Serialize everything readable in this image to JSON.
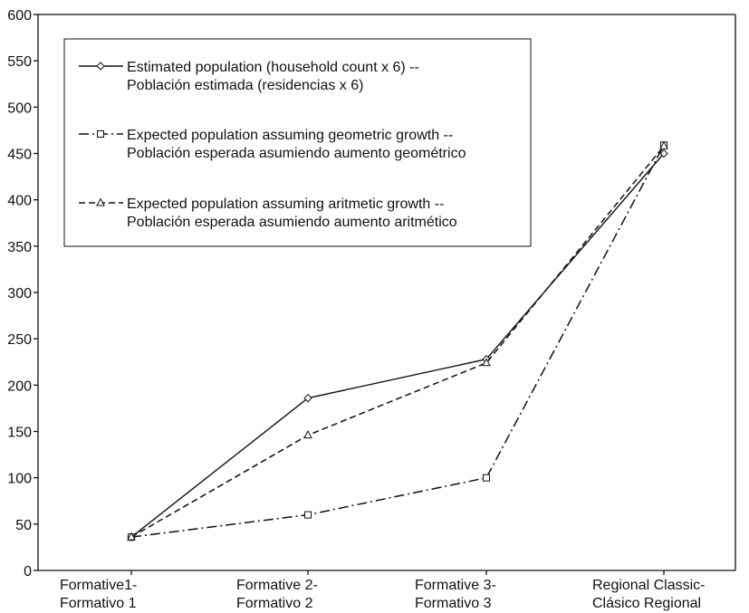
{
  "chart_data": {
    "type": "line",
    "categories": [
      [
        "Formative1-",
        "Formativo 1"
      ],
      [
        "Formative 2-",
        "Formativo 2"
      ],
      [
        "Formative 3-",
        "Formativo 3"
      ],
      [
        "Regional Classic-",
        "Clásico Regional"
      ]
    ],
    "ylim": [
      0,
      600
    ],
    "yticks": [
      0,
      50,
      100,
      150,
      200,
      250,
      300,
      350,
      400,
      450,
      500,
      550,
      600
    ],
    "grid": false,
    "legend_position": "top-left",
    "series": [
      {
        "name": "Estimated population (household count x 6) -- Población estimada (residencias x 6)",
        "legend_lines": [
          "Estimated population (household count x 6) --",
          "Población estimada (residencias x 6)"
        ],
        "values": [
          36,
          186,
          228,
          450
        ],
        "line_style": "solid",
        "marker": "diamond"
      },
      {
        "name": "Expected population assuming geometric growth -- Población esperada asumiendo aumento geométrico",
        "legend_lines": [
          "Expected population assuming geometric growth --",
          "Población esperada asumiendo aumento geométrico"
        ],
        "values": [
          36,
          60,
          100,
          459
        ],
        "line_style": "dashdot",
        "marker": "square"
      },
      {
        "name": "Expected population assuming aritmetic growth -- Población esperada asumiendo aumento aritmético",
        "legend_lines": [
          "Expected population assuming aritmetic growth --",
          "Población esperada asumiendo aumento aritmético"
        ],
        "values": [
          36,
          146,
          224,
          458
        ],
        "line_style": "dashed",
        "marker": "triangle"
      }
    ],
    "colors": {
      "line": "#111111",
      "background": "#ffffff"
    }
  }
}
